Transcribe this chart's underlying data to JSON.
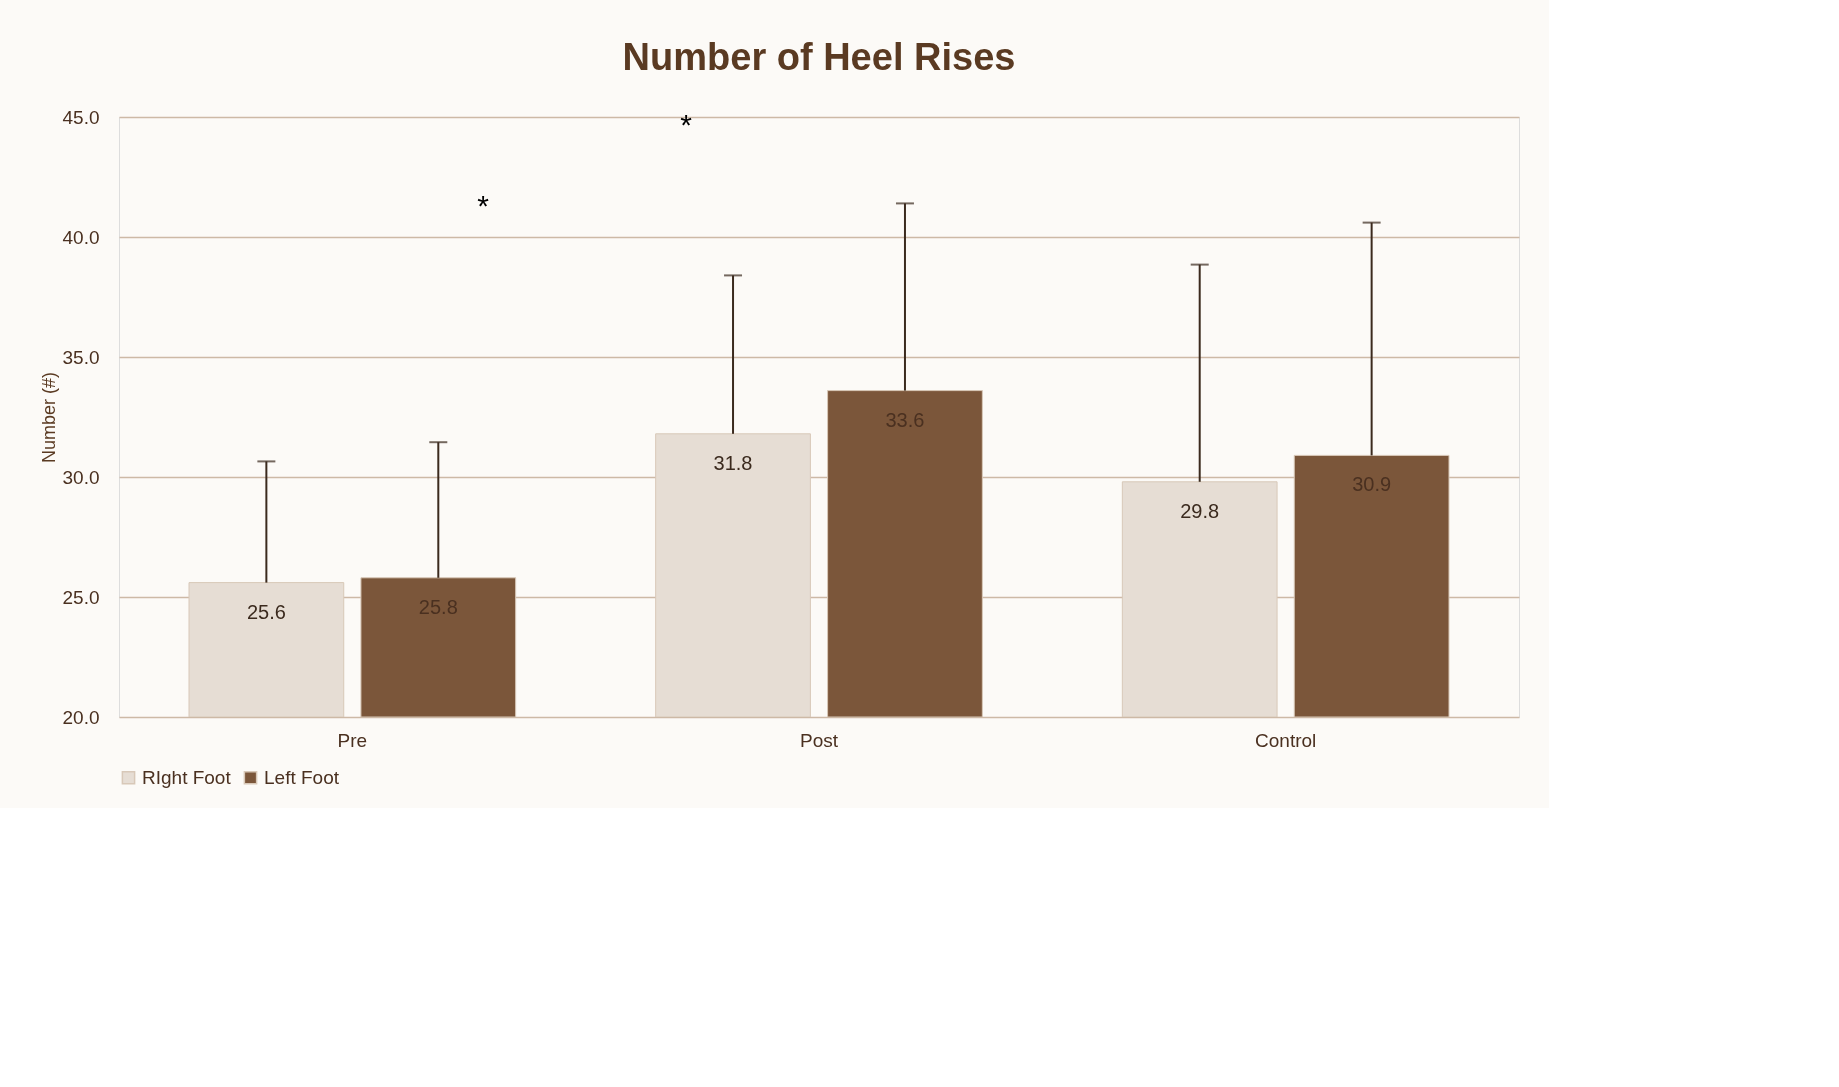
{
  "chart_data": {
    "type": "bar",
    "title": "Number of Heel Rises",
    "ylabel": "Number (#)",
    "categories": [
      "Pre",
      "Post",
      "Control"
    ],
    "series": [
      {
        "name": "RIght Foot",
        "color": "#e6ddd4",
        "values": [
          25.6,
          31.8,
          29.8
        ],
        "errors": [
          [
            25.6,
            30.65
          ],
          [
            31.8,
            38.4
          ],
          [
            29.8,
            38.85
          ]
        ]
      },
      {
        "name": "Left Foot",
        "color": "#7b563a",
        "values": [
          25.8,
          33.6,
          30.9
        ],
        "errors": [
          [
            25.8,
            31.45
          ],
          [
            33.6,
            41.4
          ],
          [
            30.9,
            40.6
          ]
        ]
      }
    ],
    "ylim": [
      20,
      45
    ],
    "yticks": [
      {
        "value": 20,
        "label": "20.0"
      },
      {
        "value": 25,
        "label": "25.0"
      },
      {
        "value": 30,
        "label": "30.0"
      },
      {
        "value": 35,
        "label": "35.0"
      },
      {
        "value": 40,
        "label": "40.0"
      },
      {
        "value": 45,
        "label": "45.0"
      }
    ],
    "grid": "y",
    "legend": "bottom",
    "data_labels": true,
    "annotations": [
      "*",
      "*"
    ]
  }
}
